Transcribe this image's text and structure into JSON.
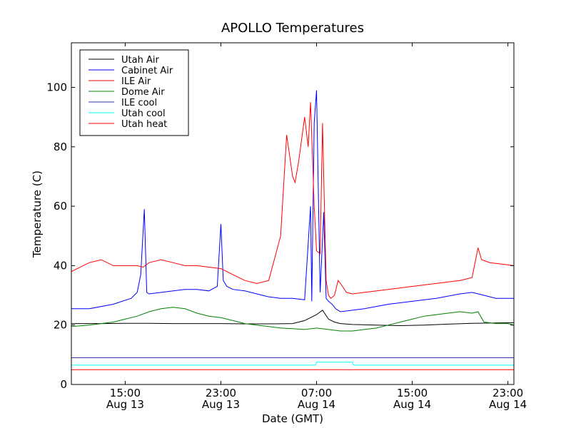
{
  "chart_data": {
    "type": "line",
    "title": "APOLLO Temperatures",
    "xlabel": "Date (GMT)",
    "ylabel": "Temperature (C)",
    "xlim": [
      10.5,
      47.5
    ],
    "ylim": [
      0,
      115
    ],
    "x_unit": "hours since Aug 13 00:00 GMT",
    "yticks": [
      0,
      20,
      40,
      60,
      80,
      100
    ],
    "xticks": [
      {
        "value": 15,
        "line1": "15:00",
        "line2": "Aug 13"
      },
      {
        "value": 23,
        "line1": "23:00",
        "line2": "Aug 13"
      },
      {
        "value": 31,
        "line1": "07:00",
        "line2": "Aug 14"
      },
      {
        "value": 39,
        "line1": "15:00",
        "line2": "Aug 14"
      },
      {
        "value": 47,
        "line1": "23:00",
        "line2": "Aug 14"
      }
    ],
    "legend_position": "top-left",
    "series": [
      {
        "name": "Utah Air",
        "color": "#000000",
        "x": [
          10.5,
          13,
          15,
          17,
          19,
          21,
          23,
          25,
          27,
          29,
          30,
          31,
          31.5,
          32,
          32.5,
          33,
          34,
          36,
          38,
          40,
          42,
          44,
          46,
          47.5
        ],
        "y": [
          20.5,
          20.5,
          20.6,
          20.6,
          20.5,
          20.5,
          20.5,
          20.4,
          20.4,
          20.5,
          21.5,
          23.5,
          25,
          22,
          21,
          20.5,
          20.2,
          20,
          19.8,
          20,
          20.3,
          20.6,
          20.7,
          20.8
        ]
      },
      {
        "name": "Cabinet Air",
        "color": "#0000ff",
        "x": [
          10.5,
          12,
          14,
          15.5,
          16,
          16.3,
          16.6,
          16.8,
          17,
          18,
          20,
          21,
          22,
          22.7,
          23,
          23.2,
          23.5,
          24,
          25,
          26,
          27,
          28,
          29,
          30,
          30.5,
          30.6,
          30.8,
          31,
          31.3,
          31.6,
          31.8,
          32,
          32.3,
          32.6,
          32.8,
          33,
          34,
          35,
          37,
          39,
          41,
          43,
          44,
          45,
          46,
          47.5
        ],
        "y": [
          25.5,
          25.5,
          27,
          29,
          31,
          37,
          59,
          31,
          30.5,
          31,
          32,
          32,
          31.5,
          33,
          54,
          35,
          33,
          32,
          31.5,
          30.5,
          29.5,
          29,
          29,
          28.5,
          60,
          28,
          88,
          99,
          31,
          58,
          29,
          28,
          27,
          25.5,
          25,
          24.5,
          25,
          25.5,
          27,
          28,
          29,
          30.5,
          31,
          30,
          29,
          29
        ]
      },
      {
        "name": "ILE Air",
        "color": "#ff0000",
        "x": [
          10.5,
          12,
          13,
          14,
          15,
          16,
          16.5,
          17,
          18,
          19,
          20,
          21,
          22,
          23,
          23.5,
          24,
          25,
          26,
          27,
          28,
          28.5,
          29,
          29.2,
          29.5,
          30,
          30.3,
          30.5,
          30.8,
          31,
          31.3,
          31.5,
          31.8,
          32,
          32.2,
          32.5,
          32.8,
          33,
          33.5,
          34,
          35,
          37,
          39,
          41,
          43,
          44,
          44.5,
          44.8,
          45.5,
          46.5,
          47.5
        ],
        "y": [
          38,
          41,
          42,
          40,
          40,
          40,
          39.5,
          41,
          42,
          41,
          40,
          40,
          39.5,
          39,
          38,
          37,
          35,
          34,
          35,
          50,
          84,
          70,
          68,
          75,
          90,
          80,
          95,
          60,
          45,
          44,
          88,
          35,
          30,
          29,
          30,
          35,
          34,
          31,
          30.5,
          31,
          32,
          33,
          34,
          35,
          36,
          46,
          42,
          41,
          40.5,
          40
        ]
      },
      {
        "name": "Dome Air",
        "color": "#008000",
        "x": [
          10.5,
          12,
          14,
          15,
          16,
          17,
          18,
          19,
          20,
          21,
          22,
          23,
          24,
          25,
          26,
          27,
          28,
          29,
          30,
          31,
          32,
          33,
          34,
          35,
          36,
          37,
          38,
          39,
          40,
          41,
          42,
          43,
          44,
          44.5,
          45,
          46,
          47,
          47.5
        ],
        "y": [
          19.5,
          20,
          21,
          22,
          23,
          24.5,
          25.5,
          26,
          25.5,
          24,
          23,
          22.5,
          21.5,
          20.5,
          20,
          19.5,
          19,
          18.8,
          18.5,
          19,
          18.5,
          18,
          18,
          18.5,
          19,
          20,
          21,
          22,
          23,
          23.5,
          24,
          24.5,
          24,
          24.5,
          21,
          20.5,
          20.5,
          20
        ]
      },
      {
        "name": "ILE cool",
        "color": "#3333aa",
        "x": [
          10.5,
          47.5
        ],
        "y": [
          9,
          9
        ]
      },
      {
        "name": "Utah cool",
        "color": "#00ffff",
        "x": [
          10.5,
          30.9,
          31,
          34,
          34.1,
          47.5
        ],
        "y": [
          6.5,
          6.5,
          7.5,
          7.5,
          6.5,
          6.5
        ]
      },
      {
        "name": "Utah heat",
        "color": "#ff0000",
        "x": [
          10.5,
          47.5
        ],
        "y": [
          5,
          5
        ]
      }
    ]
  }
}
